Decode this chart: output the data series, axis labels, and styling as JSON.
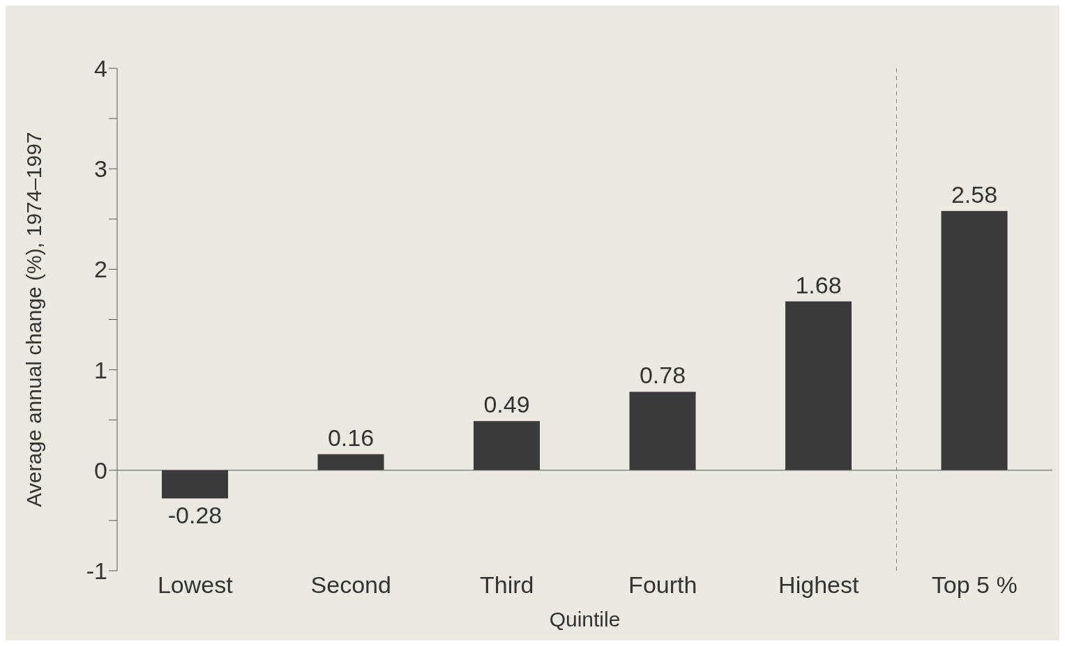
{
  "chart_data": {
    "type": "bar",
    "xlabel": "Quintile",
    "ylabel": "Average annual change (%), 1974–1997",
    "categories": [
      "Lowest",
      "Second",
      "Third",
      "Fourth",
      "Highest",
      "Top 5 %"
    ],
    "values": [
      -0.28,
      0.16,
      0.49,
      0.78,
      1.68,
      2.58
    ],
    "color": "#3a3a3a",
    "ylim": [
      -1,
      4
    ],
    "yticks": [
      -1,
      {
        "value": -0.5,
        "label": null
      },
      0,
      {
        "value": 0.5,
        "label": null
      },
      1,
      {
        "value": 1.5,
        "label": null
      },
      2,
      {
        "value": 2.5,
        "label": null
      },
      3,
      {
        "value": 3.5,
        "label": null
      },
      4
    ],
    "data_labels": true,
    "grid": false,
    "legend": false,
    "ref_lines": [
      {
        "axis": "x",
        "value": "Top 5 %",
        "label": null,
        "line_style": "dashed",
        "color": "#8a8a8a"
      }
    ]
  }
}
